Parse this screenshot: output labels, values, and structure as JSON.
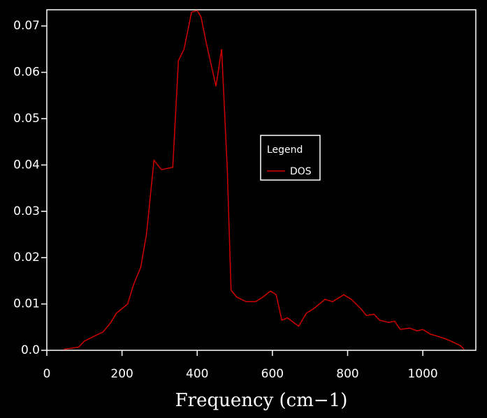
{
  "chart_data": {
    "type": "line",
    "x_label": "Frequency (cm−1)",
    "x": [
      45,
      70,
      85,
      100,
      125,
      150,
      170,
      185,
      200,
      215,
      230,
      250,
      265,
      285,
      305,
      335,
      350,
      365,
      385,
      400,
      410,
      425,
      450,
      465,
      480,
      490,
      505,
      530,
      555,
      575,
      595,
      610,
      625,
      640,
      670,
      690,
      710,
      740,
      760,
      790,
      810,
      835,
      850,
      870,
      885,
      910,
      925,
      940,
      965,
      985,
      1000,
      1020,
      1040,
      1060,
      1080,
      1100,
      1110
    ],
    "series": [
      {
        "name": "DOS",
        "color": "#d00000",
        "values": [
          0.0002,
          0.0005,
          0.0007,
          0.002,
          0.003,
          0.004,
          0.006,
          0.008,
          0.009,
          0.01,
          0.014,
          0.018,
          0.025,
          0.041,
          0.039,
          0.0395,
          0.0625,
          0.065,
          0.073,
          0.0733,
          0.072,
          0.066,
          0.057,
          0.065,
          0.039,
          0.013,
          0.0115,
          0.0105,
          0.0105,
          0.0115,
          0.0128,
          0.012,
          0.0065,
          0.007,
          0.0052,
          0.008,
          0.009,
          0.011,
          0.0105,
          0.012,
          0.011,
          0.009,
          0.0075,
          0.0078,
          0.0065,
          0.006,
          0.0063,
          0.0045,
          0.0048,
          0.0042,
          0.0045,
          0.0035,
          0.003,
          0.0025,
          0.0018,
          0.001,
          0.0002
        ]
      }
    ],
    "legend_title": "Legend",
    "xlim": [
      0,
      1141
    ],
    "xticks": [
      0,
      200,
      400,
      600,
      800,
      1000
    ],
    "ylim": [
      0,
      0.0735
    ],
    "yticks": [
      {
        "value": 0,
        "label": "0.0"
      },
      0.01,
      0.02,
      0.03,
      0.04,
      0.05,
      0.06,
      0.07
    ]
  }
}
